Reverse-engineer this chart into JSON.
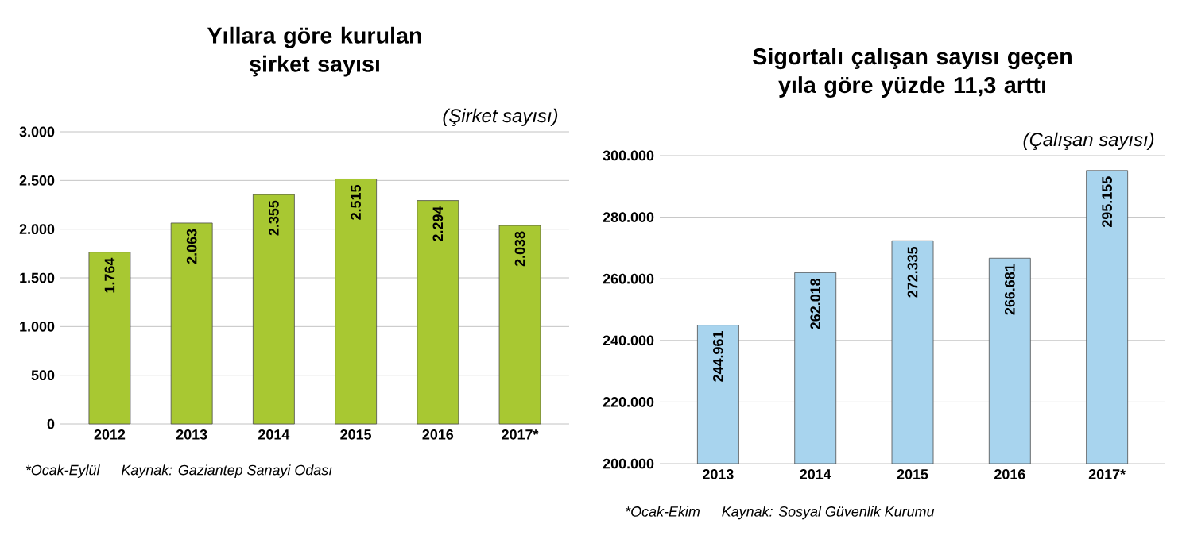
{
  "chart_data": [
    {
      "type": "bar",
      "title": "Yıllara göre kurulan şirket sayısı",
      "ylabel": "(Şirket sayısı)",
      "categories": [
        "2012",
        "2013",
        "2014",
        "2015",
        "2016",
        "2017*"
      ],
      "values": [
        1764,
        2063,
        2355,
        2515,
        2294,
        2038
      ],
      "value_labels": [
        "1.764",
        "2.063",
        "2.355",
        "2.515",
        "2.294",
        "2.038"
      ],
      "color": "#a8c832",
      "ylim": [
        0,
        3000
      ],
      "yticks": [
        {
          "value": 0,
          "label": "0"
        },
        {
          "value": 500,
          "label": "500"
        },
        {
          "value": 1000,
          "label": "1.000"
        },
        {
          "value": 1500,
          "label": "1.500"
        },
        {
          "value": 2000,
          "label": "2.000"
        },
        {
          "value": 2500,
          "label": "2.500"
        },
        {
          "value": 3000,
          "label": "3.000"
        }
      ],
      "grid": "y",
      "annotations": [
        "*Ocak-Eylül",
        "Kaynak: Gaziantep Sanayi Odası"
      ]
    },
    {
      "type": "bar",
      "title": "Sigortalı çalışan sayısı geçen yıla göre yüzde 11,3 arttı",
      "ylabel": "(Çalışan sayısı)",
      "categories": [
        "2013",
        "2014",
        "2015",
        "2016",
        "2017*"
      ],
      "values": [
        244961,
        262018,
        272335,
        266681,
        295155
      ],
      "value_labels": [
        "244.961",
        "262.018",
        "272.335",
        "266.681",
        "295.155"
      ],
      "color": "#a8d4ee",
      "ylim": [
        200000,
        300000
      ],
      "yticks": [
        {
          "value": 200000,
          "label": "200.000"
        },
        {
          "value": 220000,
          "label": "220.000"
        },
        {
          "value": 240000,
          "label": "240.000"
        },
        {
          "value": 260000,
          "label": "260.000"
        },
        {
          "value": 280000,
          "label": "280.000"
        },
        {
          "value": 300000,
          "label": "300.000"
        }
      ],
      "grid": "y",
      "annotations": [
        "*Ocak-Ekim",
        "Kaynak: Sosyal Güvenlik Kurumu"
      ]
    }
  ]
}
